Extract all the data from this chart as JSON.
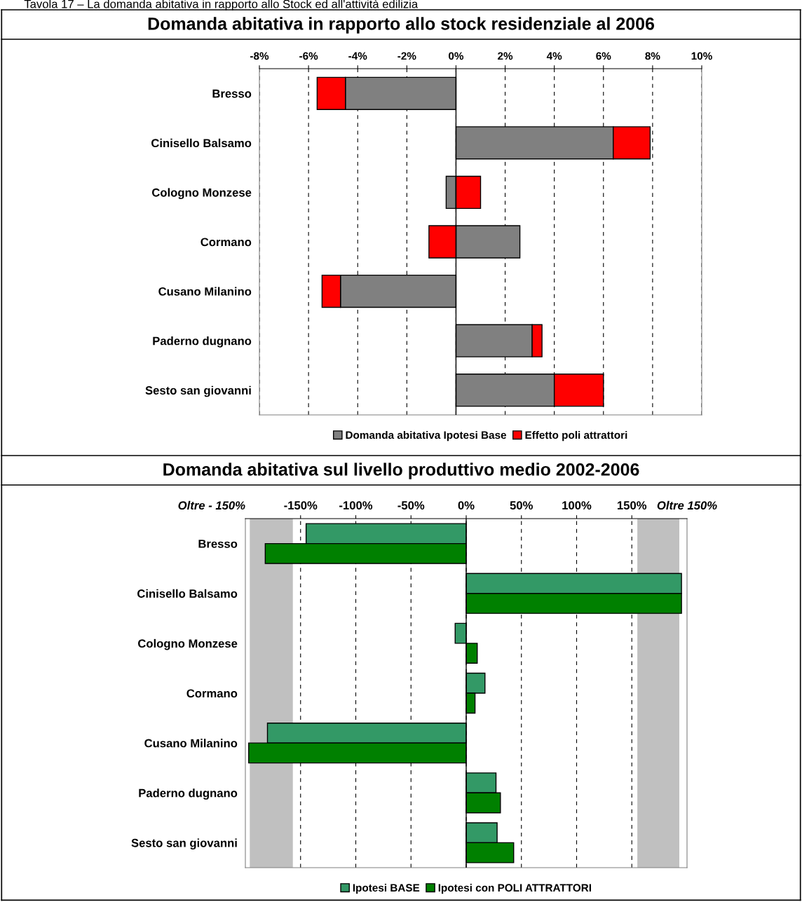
{
  "chart_data": [
    {
      "type": "bar",
      "orientation": "horizontal",
      "stacked": true,
      "title": "Domanda abitativa in rapporto allo stock residenziale al 2006",
      "annotations": [
        "Tavola 17 – La domanda abitativa in rapporto allo Stock ed all'attività edilizia"
      ],
      "categories": [
        "Bresso",
        "Cinisello Balsamo",
        "Cologno Monzese",
        "Cormano",
        "Cusano Milanino",
        "Paderno dugnano",
        "Sesto san giovanni"
      ],
      "series": [
        {
          "name": "Domanda abitativa Ipotesi Base",
          "color": "#808080",
          "values": [
            -4.5,
            6.4,
            -0.4,
            2.6,
            -4.7,
            3.1,
            4.0
          ]
        },
        {
          "name": "Effetto poli attrattori",
          "color": "#ff0000",
          "values": [
            -1.15,
            1.5,
            1.0,
            -1.1,
            -0.75,
            0.4,
            2.0
          ]
        }
      ],
      "xlim": [
        -8,
        10
      ],
      "xticks": [
        {
          "value": -8,
          "label": "-8%"
        },
        {
          "value": -6,
          "label": "-6%"
        },
        {
          "value": -4,
          "label": "-4%"
        },
        {
          "value": -2,
          "label": "-2%"
        },
        {
          "value": 0,
          "label": "0%"
        },
        {
          "value": 2,
          "label": "2%"
        },
        {
          "value": 4,
          "label": "4%"
        },
        {
          "value": 6,
          "label": "6%"
        },
        {
          "value": 8,
          "label": "8%"
        },
        {
          "value": 10,
          "label": "10%"
        }
      ],
      "grid": "x",
      "legend": "bottom"
    },
    {
      "type": "bar",
      "orientation": "horizontal",
      "title": "Domanda abitativa sul livello produttivo medio 2002-2006",
      "categories": [
        "Bresso",
        "Cinisello Balsamo",
        "Cologno Monzese",
        "Cormano",
        "Cusano Milanino",
        "Paderno dugnano",
        "Sesto san giovanni"
      ],
      "series": [
        {
          "name": "Ipotesi BASE",
          "color": "#339966",
          "values": [
            -145,
            195,
            -10,
            17,
            -180,
            27,
            28
          ]
        },
        {
          "name": "Ipotesi con POLI ATTRATTORI",
          "color": "#008000",
          "values": [
            -182,
            195,
            10,
            8,
            -197,
            31,
            43
          ]
        }
      ],
      "annotations": [
        "Oltre - 150%",
        "Oltre 150%"
      ],
      "xlim": [
        -200,
        200
      ],
      "xticks": [
        {
          "value": -150,
          "label": "-150%"
        },
        {
          "value": -100,
          "label": "-100%"
        },
        {
          "value": -50,
          "label": "-50%"
        },
        {
          "value": 0,
          "label": "0%"
        },
        {
          "value": 50,
          "label": "50%"
        },
        {
          "value": 100,
          "label": "100%"
        },
        {
          "value": 150,
          "label": "150%"
        }
      ],
      "bands": [
        {
          "axis": "x",
          "from": -196,
          "to": -157,
          "color": "#c0c0c0"
        },
        {
          "axis": "x",
          "from": 155,
          "to": 193,
          "color": "#c0c0c0"
        }
      ],
      "grid": "x",
      "legend": "bottom"
    }
  ]
}
